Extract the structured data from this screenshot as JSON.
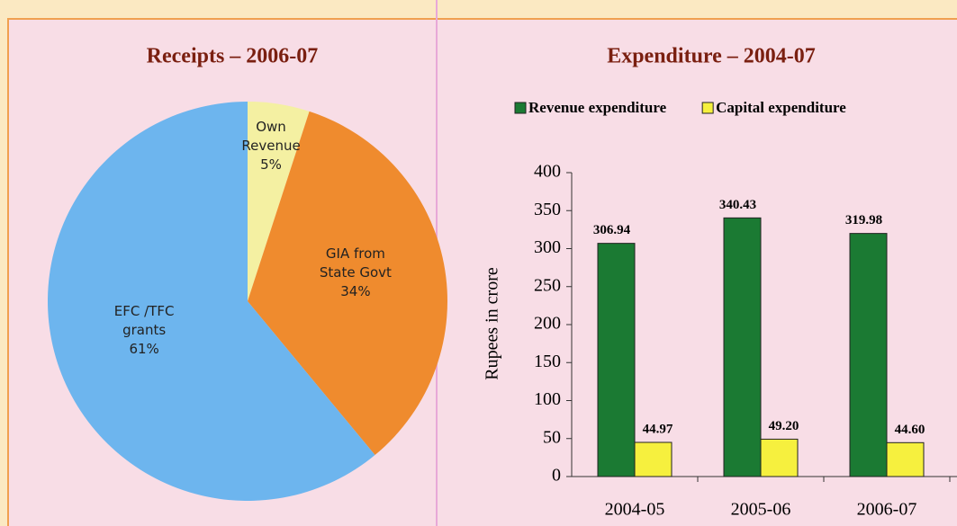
{
  "chart_data": [
    {
      "type": "pie",
      "title": "Receipts – 2006-07",
      "categories": [
        "Own Revenue",
        "GIA from State Govt",
        "EFC /TFC grants"
      ],
      "values": [
        5,
        34,
        61
      ],
      "value_labels": [
        "5%",
        "34%",
        "61%"
      ],
      "colors": [
        "#f4f0a2",
        "#ef8b2e",
        "#6db5ee"
      ]
    },
    {
      "type": "bar",
      "title": "Expenditure – 2004-07",
      "categories": [
        "2004-05",
        "2005-06",
        "2006-07"
      ],
      "series": [
        {
          "name": "Revenue expenditure",
          "color": "#1b7a33",
          "values": [
            306.94,
            340.43,
            319.98
          ],
          "value_labels": [
            "306.94",
            "340.43",
            "319.98"
          ]
        },
        {
          "name": "Capital expenditure",
          "color": "#f6f03e",
          "values": [
            44.97,
            49.2,
            44.6
          ],
          "value_labels": [
            "44.97",
            "49.20",
            "44.60"
          ]
        }
      ],
      "ylabel": "Rupees in crore",
      "ylim": [
        0,
        400
      ],
      "yticks": [
        0,
        50,
        100,
        150,
        200,
        250,
        300,
        350,
        400
      ]
    }
  ]
}
